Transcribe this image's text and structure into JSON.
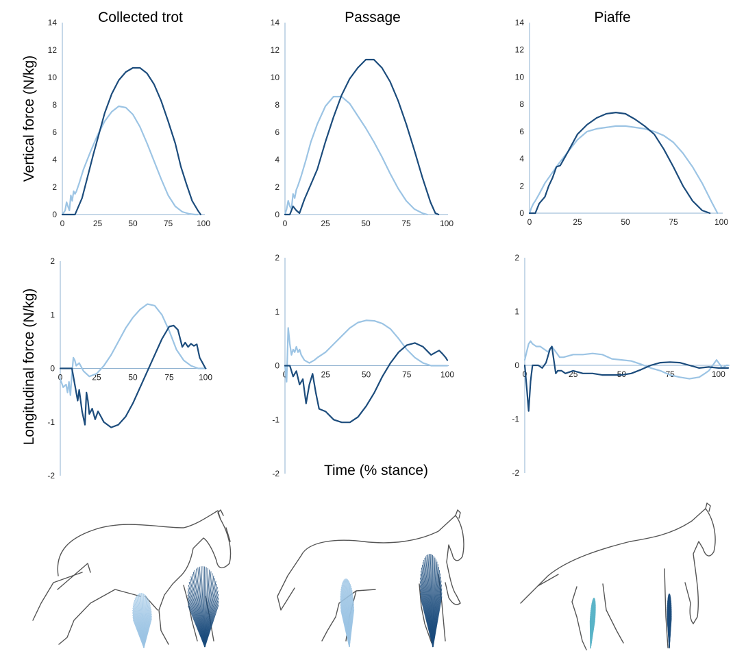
{
  "colors": {
    "forelimb": "#1c4c7c",
    "hindlimb": "#9cc4e4",
    "axis": "#8eb1d0",
    "sketch": "#555555"
  },
  "row_labels": {
    "vertical": "Vertical force (N/kg)",
    "longitudinal": "Longitudinal force (N/kg)"
  },
  "x_axis_label": "Time (% stance)",
  "illustrations": [
    {
      "name": "horse-collected-trot-sketch"
    },
    {
      "name": "horse-passage-sketch"
    },
    {
      "name": "horse-piaffe-sketch"
    }
  ],
  "chart_data": [
    {
      "type": "line",
      "column_title": "Collected trot",
      "panel": "vertical",
      "xlim": [
        0,
        100
      ],
      "ylim": [
        0,
        14
      ],
      "xticks": [
        "0",
        "25",
        "50",
        "75",
        "100"
      ],
      "yticks": [
        "0",
        "2",
        "4",
        "6",
        "8",
        "10",
        "12",
        "14"
      ],
      "series": [
        {
          "color": "#1c4c7c",
          "x": [
            0,
            9,
            14,
            18,
            22,
            26,
            30,
            35,
            40,
            45,
            50,
            55,
            60,
            65,
            70,
            75,
            80,
            84,
            88,
            92,
            96,
            98
          ],
          "y": [
            0,
            0,
            1.2,
            2.8,
            4.4,
            5.9,
            7.4,
            8.8,
            9.8,
            10.4,
            10.7,
            10.7,
            10.3,
            9.5,
            8.3,
            6.8,
            5.2,
            3.5,
            2.2,
            1.0,
            0.3,
            0
          ]
        },
        {
          "color": "#9cc4e4",
          "x": [
            0,
            2,
            3,
            4,
            5,
            6,
            7,
            8,
            9,
            10,
            12,
            15,
            20,
            25,
            30,
            35,
            40,
            45,
            50,
            55,
            60,
            65,
            70,
            75,
            80,
            85,
            90,
            94,
            96
          ],
          "y": [
            0,
            0.3,
            0.9,
            0.6,
            0.3,
            1.4,
            1.0,
            1.7,
            1.5,
            1.7,
            2.3,
            3.3,
            4.6,
            5.8,
            6.8,
            7.5,
            7.9,
            7.8,
            7.3,
            6.4,
            5.2,
            3.9,
            2.6,
            1.4,
            0.6,
            0.2,
            0.05,
            0,
            0
          ]
        }
      ]
    },
    {
      "type": "line",
      "column_title": "Passage",
      "panel": "vertical",
      "xlim": [
        0,
        100
      ],
      "ylim": [
        0,
        14
      ],
      "xticks": [
        "0",
        "25",
        "50",
        "75",
        "100"
      ],
      "yticks": [
        "0",
        "2",
        "4",
        "6",
        "8",
        "10",
        "12",
        "14"
      ],
      "series": [
        {
          "color": "#1c4c7c",
          "x": [
            0,
            3,
            5,
            7,
            9,
            12,
            16,
            20,
            25,
            30,
            35,
            40,
            45,
            50,
            55,
            60,
            65,
            70,
            75,
            80,
            85,
            90,
            93,
            95
          ],
          "y": [
            0,
            0,
            0.6,
            0.3,
            0.1,
            1.1,
            2.2,
            3.3,
            5.3,
            7.1,
            8.7,
            9.9,
            10.7,
            11.3,
            11.3,
            10.7,
            9.7,
            8.3,
            6.6,
            4.7,
            2.7,
            0.9,
            0.1,
            0
          ]
        },
        {
          "color": "#9cc4e4",
          "x": [
            0,
            1,
            2,
            3,
            4,
            5,
            6,
            7,
            8,
            10,
            13,
            16,
            20,
            25,
            30,
            35,
            40,
            45,
            50,
            55,
            60,
            65,
            70,
            75,
            80,
            85,
            88
          ],
          "y": [
            0,
            0.4,
            1.0,
            0.6,
            0.4,
            1.5,
            1.2,
            1.8,
            2.1,
            2.8,
            4.0,
            5.3,
            6.6,
            7.9,
            8.6,
            8.6,
            8.1,
            7.2,
            6.3,
            5.3,
            4.2,
            3.0,
            1.9,
            1.0,
            0.4,
            0.1,
            0
          ]
        }
      ]
    },
    {
      "type": "line",
      "column_title": "Piaffe",
      "panel": "vertical",
      "xlim": [
        0,
        100
      ],
      "ylim": [
        0,
        14
      ],
      "xticks": [
        "0",
        "25",
        "50",
        "75",
        "100"
      ],
      "yticks": [
        "0",
        "2",
        "4",
        "6",
        "8",
        "10",
        "12",
        "14"
      ],
      "series": [
        {
          "color": "#1c4c7c",
          "x": [
            0,
            3,
            5,
            8,
            10,
            12,
            14,
            16,
            20,
            25,
            30,
            35,
            40,
            45,
            50,
            55,
            60,
            65,
            70,
            75,
            80,
            85,
            90,
            94
          ],
          "y": [
            0,
            0,
            0.7,
            1.2,
            2.0,
            2.6,
            3.4,
            3.5,
            4.5,
            5.8,
            6.5,
            7.0,
            7.3,
            7.4,
            7.3,
            6.9,
            6.4,
            5.8,
            4.7,
            3.4,
            2.0,
            0.9,
            0.2,
            0
          ]
        },
        {
          "color": "#9cc4e4",
          "x": [
            0,
            1,
            2,
            3,
            5,
            8,
            11,
            15,
            20,
            25,
            30,
            35,
            40,
            45,
            50,
            55,
            60,
            65,
            70,
            75,
            80,
            85,
            90,
            95,
            98
          ],
          "y": [
            0,
            0.4,
            0.7,
            0.9,
            1.4,
            2.2,
            2.8,
            3.6,
            4.5,
            5.4,
            6.0,
            6.2,
            6.3,
            6.4,
            6.4,
            6.3,
            6.2,
            6.0,
            5.7,
            5.2,
            4.4,
            3.4,
            2.2,
            0.8,
            0
          ]
        }
      ]
    },
    {
      "type": "line",
      "column_title": "Collected trot",
      "panel": "longitudinal",
      "xlim": [
        0,
        100
      ],
      "ylim": [
        -2,
        2
      ],
      "xticks": [
        "0",
        "25",
        "50",
        "75",
        "100"
      ],
      "yticks": [
        "2",
        "1",
        "0",
        "-1",
        "-2"
      ],
      "series": [
        {
          "color": "#1c4c7c",
          "x": [
            0,
            8,
            10,
            12,
            13,
            15,
            17,
            18,
            19,
            20,
            22,
            24,
            26,
            28,
            30,
            35,
            40,
            45,
            50,
            55,
            60,
            65,
            70,
            75,
            78,
            81,
            84,
            86,
            88,
            90,
            92,
            94,
            96,
            98,
            100
          ],
          "y": [
            0,
            0,
            -0.3,
            -0.6,
            -0.4,
            -0.8,
            -1.05,
            -0.45,
            -0.6,
            -0.85,
            -0.75,
            -0.95,
            -0.8,
            -0.9,
            -1.0,
            -1.1,
            -1.05,
            -0.9,
            -0.65,
            -0.35,
            -0.05,
            0.25,
            0.55,
            0.78,
            0.8,
            0.72,
            0.4,
            0.48,
            0.4,
            0.46,
            0.42,
            0.45,
            0.2,
            0.1,
            0
          ]
        },
        {
          "color": "#9cc4e4",
          "x": [
            0,
            2,
            4,
            5,
            6,
            7,
            8,
            9,
            10,
            11,
            13,
            16,
            20,
            25,
            30,
            35,
            40,
            45,
            50,
            55,
            60,
            65,
            70,
            75,
            80,
            85,
            90,
            95,
            100
          ],
          "y": [
            -0.2,
            -0.35,
            -0.3,
            -0.45,
            -0.25,
            -0.5,
            -0.1,
            0.2,
            0.15,
            0.05,
            0.1,
            -0.05,
            -0.15,
            -0.1,
            0.05,
            0.25,
            0.5,
            0.75,
            0.95,
            1.1,
            1.2,
            1.17,
            1.0,
            0.7,
            0.35,
            0.15,
            0.05,
            0,
            0
          ]
        }
      ]
    },
    {
      "type": "line",
      "column_title": "Passage",
      "panel": "longitudinal",
      "xlim": [
        0,
        100
      ],
      "ylim": [
        -2,
        2
      ],
      "xticks": [
        "0",
        "25",
        "50",
        "75",
        "100"
      ],
      "yticks": [
        "2",
        "1",
        "0",
        "-1",
        "-2"
      ],
      "series": [
        {
          "color": "#1c4c7c",
          "x": [
            0,
            3,
            5,
            7,
            9,
            11,
            13,
            15,
            17,
            19,
            21,
            25,
            30,
            35,
            40,
            45,
            50,
            55,
            60,
            65,
            70,
            75,
            80,
            85,
            90,
            93,
            95,
            97,
            99,
            100
          ],
          "y": [
            0,
            0,
            -0.2,
            -0.1,
            -0.35,
            -0.25,
            -0.7,
            -0.35,
            -0.15,
            -0.5,
            -0.8,
            -0.85,
            -1.0,
            -1.05,
            -1.05,
            -0.95,
            -0.75,
            -0.5,
            -0.2,
            0.05,
            0.25,
            0.38,
            0.42,
            0.35,
            0.2,
            0.25,
            0.28,
            0.22,
            0.15,
            0.1
          ]
        },
        {
          "color": "#9cc4e4",
          "x": [
            0,
            1,
            2,
            3,
            4,
            5,
            6,
            7,
            8,
            9,
            10,
            12,
            15,
            18,
            20,
            25,
            30,
            35,
            40,
            45,
            50,
            55,
            60,
            65,
            70,
            75,
            80,
            85,
            90,
            95,
            100
          ],
          "y": [
            0,
            -0.3,
            0.7,
            0.4,
            0.2,
            0.3,
            0.25,
            0.35,
            0.25,
            0.3,
            0.2,
            0.1,
            0.05,
            0.1,
            0.15,
            0.25,
            0.4,
            0.55,
            0.7,
            0.8,
            0.84,
            0.83,
            0.78,
            0.68,
            0.5,
            0.3,
            0.15,
            0.05,
            0,
            0,
            0
          ]
        }
      ]
    },
    {
      "type": "line",
      "column_title": "Piaffe",
      "panel": "longitudinal",
      "xlim": [
        0,
        105
      ],
      "ylim": [
        -2,
        2
      ],
      "xticks": [
        "0",
        "25",
        "50",
        "75",
        "100"
      ],
      "yticks": [
        "2",
        "1",
        "0",
        "-1",
        "-2"
      ],
      "series": [
        {
          "color": "#1c4c7c",
          "x": [
            0,
            1,
            2,
            3,
            4,
            5,
            7,
            9,
            11,
            13,
            14,
            15,
            16,
            17,
            19,
            21,
            25,
            30,
            35,
            40,
            45,
            50,
            55,
            60,
            65,
            70,
            75,
            80,
            85,
            90,
            95,
            100,
            103,
            105
          ],
          "y": [
            0,
            -0.4,
            -0.85,
            -0.3,
            0,
            0,
            0,
            -0.05,
            0.05,
            0.3,
            0.35,
            0.1,
            -0.15,
            -0.1,
            -0.1,
            -0.15,
            -0.1,
            -0.15,
            -0.15,
            -0.18,
            -0.18,
            -0.18,
            -0.15,
            -0.08,
            0,
            0.05,
            0.06,
            0.05,
            0,
            -0.05,
            -0.03,
            -0.05,
            -0.05,
            -0.05
          ]
        },
        {
          "color": "#9cc4e4",
          "x": [
            0,
            1,
            2,
            3,
            4,
            6,
            8,
            10,
            12,
            14,
            16,
            18,
            20,
            25,
            30,
            35,
            40,
            45,
            50,
            55,
            60,
            65,
            70,
            75,
            80,
            85,
            90,
            93,
            95,
            97,
            99,
            100,
            102,
            104,
            105
          ],
          "y": [
            0.1,
            0.25,
            0.4,
            0.45,
            0.4,
            0.35,
            0.35,
            0.3,
            0.25,
            0.35,
            0.25,
            0.15,
            0.15,
            0.2,
            0.2,
            0.22,
            0.2,
            0.12,
            0.1,
            0.08,
            0.02,
            -0.05,
            -0.1,
            -0.18,
            -0.22,
            -0.25,
            -0.22,
            -0.15,
            -0.1,
            0,
            0.1,
            0.05,
            -0.05,
            0,
            0
          ]
        }
      ]
    }
  ]
}
